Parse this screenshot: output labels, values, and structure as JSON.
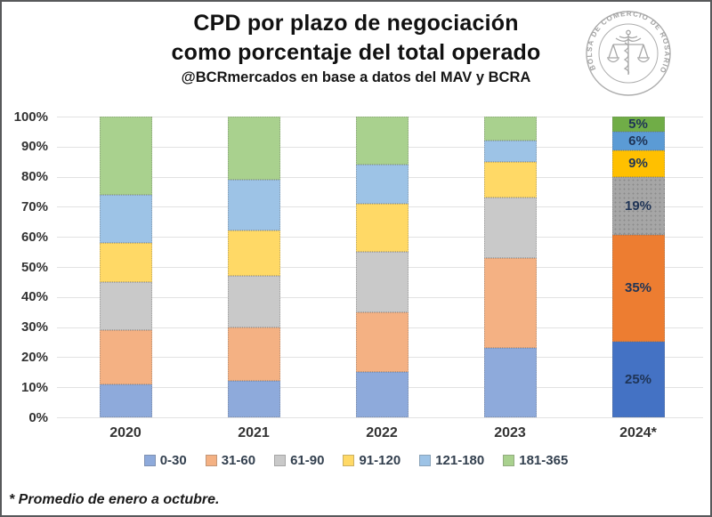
{
  "header": {
    "title_line1": "CPD por plazo de negociación",
    "title_line2": "como porcentaje del total operado",
    "subtitle": "@BCRmercados en base a datos del MAV y BCRA",
    "logo_text": "BOLSA DE COMERCIO DE ROSARIO"
  },
  "chart_data": {
    "type": "bar",
    "stacked": true,
    "grid": true,
    "legend_position": "bottom",
    "categories": [
      "2020",
      "2021",
      "2022",
      "2023",
      "2024*"
    ],
    "series": [
      {
        "name": "0-30",
        "values": [
          11,
          12,
          15,
          23,
          25
        ]
      },
      {
        "name": "31-60",
        "values": [
          18,
          18,
          20,
          30,
          35
        ]
      },
      {
        "name": "61-90",
        "values": [
          16,
          17,
          20,
          20,
          19
        ]
      },
      {
        "name": "91-120",
        "values": [
          13,
          15,
          16,
          12,
          9
        ]
      },
      {
        "name": "121-180",
        "values": [
          16,
          17,
          13,
          7,
          6
        ]
      },
      {
        "name": "181-365",
        "values": [
          26,
          21,
          16,
          8,
          5
        ]
      }
    ],
    "data_labels_category": "2024*",
    "data_labels": [
      "25%",
      "35%",
      "19%",
      "9%",
      "6%",
      "5%"
    ],
    "ylabel": "",
    "xlabel": "",
    "ylim": [
      0,
      100
    ],
    "yticks": [
      "0%",
      "10%",
      "20%",
      "30%",
      "40%",
      "50%",
      "60%",
      "70%",
      "80%",
      "90%",
      "100%"
    ],
    "palette_muted": [
      "#8EAADB",
      "#F4B183",
      "#C9C9C9",
      "#FFD966",
      "#9DC3E6",
      "#A9D18E"
    ],
    "palette_strong": [
      "#4472C4",
      "#ED7D31",
      "#A6A6A6",
      "#FFC000",
      "#5B9BD5",
      "#70AD47"
    ]
  },
  "footnote": "* Promedio de enero a octubre."
}
